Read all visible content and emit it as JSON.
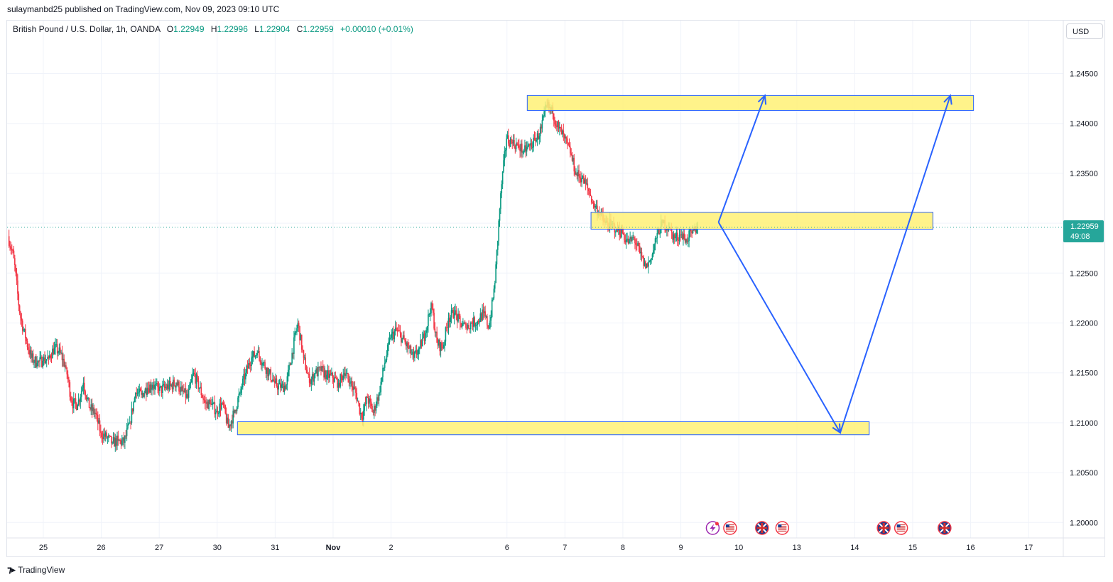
{
  "header": {
    "credit": "sulaymanbd25 published on TradingView.com, Nov 09, 2023 09:10 UTC"
  },
  "legend": {
    "symbol": "British Pound / U.S. Dollar, 1h, OANDA",
    "open_label": "O",
    "open": "1.22949",
    "high_label": "H",
    "high": "1.22996",
    "low_label": "L",
    "low": "1.22904",
    "close_label": "C",
    "close": "1.22959",
    "change": "+0.00010 (+0.01%)"
  },
  "price_scale": {
    "currency": "USD",
    "last_price": "1.22959",
    "countdown": "49:08"
  },
  "brand": {
    "name": "TradingView"
  },
  "colors": {
    "up": "#089981",
    "down": "#f23645",
    "zone_fill": "#fff176",
    "zone_border": "#2962ff",
    "arrow": "#2962ff",
    "last_price": "#26a69a"
  },
  "chart_data": {
    "type": "candlestick",
    "symbol": "GBPUSD",
    "interval": "1h",
    "ylim": [
      1.1975,
      1.2495
    ],
    "y_ticks": [
      "1.20000",
      "1.20500",
      "1.21000",
      "1.21500",
      "1.22000",
      "1.22500",
      "1.23000",
      "1.23500",
      "1.24000",
      "1.24500"
    ],
    "x_ticks": [
      {
        "label": "25",
        "i": 6
      },
      {
        "label": "26",
        "i": 16
      },
      {
        "label": "27",
        "i": 26
      },
      {
        "label": "30",
        "i": 36
      },
      {
        "label": "31",
        "i": 46
      },
      {
        "label": "Nov",
        "i": 56
      },
      {
        "label": "2",
        "i": 66
      },
      {
        "label": "6",
        "i": 86
      },
      {
        "label": "7",
        "i": 96
      },
      {
        "label": "8",
        "i": 106
      },
      {
        "label": "9",
        "i": 116
      },
      {
        "label": "10",
        "i": 126
      },
      {
        "label": "13",
        "i": 136
      },
      {
        "label": "14",
        "i": 146
      },
      {
        "label": "15",
        "i": 156
      },
      {
        "label": "16",
        "i": 166
      },
      {
        "label": "17",
        "i": 176
      }
    ],
    "x_count": 182,
    "path": [
      [
        0,
        1.2287
      ],
      [
        1,
        1.2265
      ],
      [
        2,
        1.221
      ],
      [
        3,
        1.2185
      ],
      [
        4,
        1.2165
      ],
      [
        5,
        1.216
      ],
      [
        6,
        1.2162
      ],
      [
        7,
        1.2165
      ],
      [
        8,
        1.2175
      ],
      [
        9,
        1.217
      ],
      [
        10,
        1.2155
      ],
      [
        11,
        1.212
      ],
      [
        12,
        1.2118
      ],
      [
        13,
        1.214
      ],
      [
        14,
        1.2115
      ],
      [
        15,
        1.211
      ],
      [
        16,
        1.209
      ],
      [
        17,
        1.2085
      ],
      [
        18,
        1.208
      ],
      [
        19,
        1.2082
      ],
      [
        20,
        1.208
      ],
      [
        21,
        1.21
      ],
      [
        22,
        1.213
      ],
      [
        23,
        1.2128
      ],
      [
        24,
        1.2135
      ],
      [
        25,
        1.2138
      ],
      [
        26,
        1.2132
      ],
      [
        27,
        1.2135
      ],
      [
        28,
        1.2137
      ],
      [
        29,
        1.214
      ],
      [
        30,
        1.2132
      ],
      [
        31,
        1.2125
      ],
      [
        32,
        1.215
      ],
      [
        33,
        1.2135
      ],
      [
        34,
        1.212
      ],
      [
        35,
        1.2118
      ],
      [
        36,
        1.2112
      ],
      [
        37,
        1.212
      ],
      [
        38,
        1.2095
      ],
      [
        39,
        1.211
      ],
      [
        40,
        1.213
      ],
      [
        41,
        1.215
      ],
      [
        42,
        1.2165
      ],
      [
        43,
        1.217
      ],
      [
        44,
        1.216
      ],
      [
        45,
        1.215
      ],
      [
        46,
        1.214
      ],
      [
        47,
        1.2135
      ],
      [
        48,
        1.2138
      ],
      [
        49,
        1.217
      ],
      [
        50,
        1.22
      ],
      [
        51,
        1.2165
      ],
      [
        52,
        1.214
      ],
      [
        53,
        1.215
      ],
      [
        54,
        1.2152
      ],
      [
        55,
        1.2148
      ],
      [
        56,
        1.2145
      ],
      [
        57,
        1.214
      ],
      [
        58,
        1.215
      ],
      [
        59,
        1.214
      ],
      [
        60,
        1.213
      ],
      [
        61,
        1.2105
      ],
      [
        62,
        1.2125
      ],
      [
        63,
        1.211
      ],
      [
        64,
        1.213
      ],
      [
        65,
        1.216
      ],
      [
        66,
        1.2185
      ],
      [
        67,
        1.2193
      ],
      [
        68,
        1.2185
      ],
      [
        69,
        1.2175
      ],
      [
        70,
        1.2165
      ],
      [
        71,
        1.2175
      ],
      [
        72,
        1.219
      ],
      [
        73,
        1.222
      ],
      [
        74,
        1.218
      ],
      [
        75,
        1.2175
      ],
      [
        76,
        1.2205
      ],
      [
        77,
        1.221
      ],
      [
        78,
        1.22
      ],
      [
        79,
        1.2195
      ],
      [
        80,
        1.22
      ],
      [
        81,
        1.2202
      ],
      [
        82,
        1.221
      ],
      [
        83,
        1.2195
      ],
      [
        84,
        1.224
      ],
      [
        85,
        1.233
      ],
      [
        86,
        1.2385
      ],
      [
        87,
        1.238
      ],
      [
        88,
        1.2378
      ],
      [
        89,
        1.2372
      ],
      [
        90,
        1.2378
      ],
      [
        91,
        1.2382
      ],
      [
        92,
        1.2395
      ],
      [
        93,
        1.2418
      ],
      [
        94,
        1.241
      ],
      [
        95,
        1.2395
      ],
      [
        96,
        1.2385
      ],
      [
        97,
        1.237
      ],
      [
        98,
        1.235
      ],
      [
        99,
        1.2345
      ],
      [
        100,
        1.2335
      ],
      [
        101,
        1.232
      ],
      [
        102,
        1.231
      ],
      [
        103,
        1.23
      ],
      [
        104,
        1.2298
      ],
      [
        105,
        1.2295
      ],
      [
        106,
        1.229
      ],
      [
        107,
        1.228
      ],
      [
        108,
        1.2285
      ],
      [
        109,
        1.227
      ],
      [
        110,
        1.2255
      ],
      [
        111,
        1.2265
      ],
      [
        112,
        1.229
      ],
      [
        113,
        1.23
      ],
      [
        114,
        1.2295
      ],
      [
        115,
        1.2285
      ],
      [
        116,
        1.2288
      ],
      [
        117,
        1.2284
      ],
      [
        118,
        1.229
      ],
      [
        119,
        1.2296
      ]
    ],
    "zones": [
      {
        "name": "resistance-zone-top",
        "x0": 89.5,
        "x1": 166.5,
        "y0": 1.2413,
        "y1": 1.2428
      },
      {
        "name": "resistance-zone-mid",
        "x0": 100.5,
        "x1": 159.5,
        "y0": 1.2294,
        "y1": 1.2311
      },
      {
        "name": "support-zone-bottom",
        "x0": 39.5,
        "x1": 148.5,
        "y0": 1.2088,
        "y1": 1.2101
      }
    ],
    "arrows": [
      {
        "name": "projection-arrow-up-near",
        "from": [
          122.5,
          1.2301
        ],
        "to": [
          130.5,
          1.2428
        ]
      },
      {
        "name": "projection-arrow-down",
        "from": [
          122.5,
          1.2301
        ],
        "to": [
          143.5,
          1.209
        ]
      },
      {
        "name": "projection-arrow-up-far",
        "from": [
          143.5,
          1.209
        ],
        "to": [
          162.5,
          1.2428
        ]
      }
    ],
    "last_price": 1.22959,
    "events": [
      {
        "name": "lightning-event-icon",
        "i": 121.5,
        "type": "lightning"
      },
      {
        "name": "us-flag-event-icon",
        "i": 124.5,
        "type": "us"
      },
      {
        "name": "uk-flag-event-icon",
        "i": 130,
        "type": "uk"
      },
      {
        "name": "us-flag-event-icon",
        "i": 133.5,
        "type": "us"
      },
      {
        "name": "uk-flag-event-icon",
        "i": 151,
        "type": "uk"
      },
      {
        "name": "us-flag-event-icon",
        "i": 154,
        "type": "us"
      },
      {
        "name": "uk-flag-event-icon",
        "i": 161.5,
        "type": "uk"
      }
    ]
  }
}
